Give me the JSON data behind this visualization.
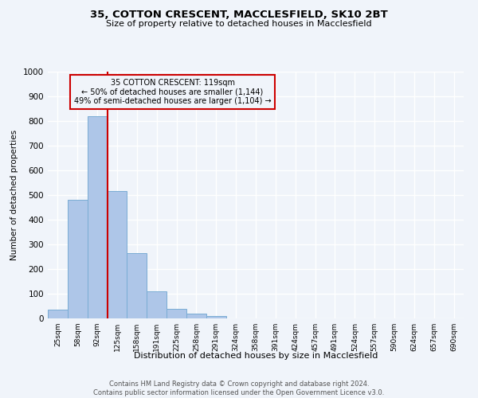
{
  "title": "35, COTTON CRESCENT, MACCLESFIELD, SK10 2BT",
  "subtitle": "Size of property relative to detached houses in Macclesfield",
  "xlabel": "Distribution of detached houses by size in Macclesfield",
  "ylabel": "Number of detached properties",
  "bar_labels": [
    "25sqm",
    "58sqm",
    "92sqm",
    "125sqm",
    "158sqm",
    "191sqm",
    "225sqm",
    "258sqm",
    "291sqm",
    "324sqm",
    "358sqm",
    "391sqm",
    "424sqm",
    "457sqm",
    "491sqm",
    "524sqm",
    "557sqm",
    "590sqm",
    "624sqm",
    "657sqm",
    "690sqm"
  ],
  "bar_values": [
    35,
    480,
    820,
    515,
    265,
    110,
    40,
    20,
    10,
    0,
    0,
    0,
    0,
    0,
    0,
    0,
    0,
    0,
    0,
    0,
    0
  ],
  "bar_color": "#aec6e8",
  "bar_edgecolor": "#7aacd4",
  "vline_x": 3,
  "vline_color": "#cc0000",
  "ylim": [
    0,
    1000
  ],
  "yticks": [
    0,
    100,
    200,
    300,
    400,
    500,
    600,
    700,
    800,
    900,
    1000
  ],
  "annotation_title": "35 COTTON CRESCENT: 119sqm",
  "annotation_line1": "← 50% of detached houses are smaller (1,144)",
  "annotation_line2": "49% of semi-detached houses are larger (1,104) →",
  "annotation_box_color": "#cc0000",
  "background_color": "#f0f4fa",
  "grid_color": "#ffffff",
  "footer_line1": "Contains HM Land Registry data © Crown copyright and database right 2024.",
  "footer_line2": "Contains public sector information licensed under the Open Government Licence v3.0."
}
